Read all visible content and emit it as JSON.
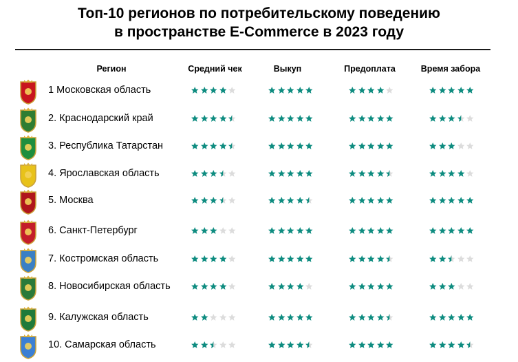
{
  "title_line1": "Топ-10 регионов по потребительскому поведению",
  "title_line2": "в пространстве E-Commerce в 2023 году",
  "headers": {
    "region": "Регион",
    "avg_check": "Средний чек",
    "buyout": "Выкуп",
    "prepayment": "Предоплата",
    "pickup_time": "Время забора"
  },
  "colors": {
    "star_filled": "#0e8c80",
    "star_empty": "#dcdcdc",
    "rule": "#1a1a1a"
  },
  "regions": [
    {
      "name": "1 Московская область",
      "emblem": "moscow-oblast-coat-of-arms-icon",
      "emblem_color": "#c8161e",
      "ratings": [
        4,
        5,
        4,
        5
      ]
    },
    {
      "name": "2. Краснодарский край",
      "emblem": "krasnodar-krai-coat-of-arms-icon",
      "emblem_color": "#2e7d32",
      "ratings": [
        4.5,
        5,
        5,
        3.5
      ]
    },
    {
      "name": "3. Республика Татарстан",
      "emblem": "tatarstan-coat-of-arms-icon",
      "emblem_color": "#1e8e3e",
      "ratings": [
        4.5,
        5,
        5,
        3
      ]
    },
    {
      "name": "4. Ярославская область",
      "emblem": "yaroslavl-oblast-coat-of-arms-icon",
      "emblem_color": "#e8c21a",
      "ratings": [
        3.5,
        5,
        4.5,
        4
      ]
    },
    {
      "name": "5. Москва",
      "emblem": "moscow-coat-of-arms-icon",
      "emblem_color": "#b0161c",
      "ratings": [
        3.5,
        4.5,
        5,
        5
      ]
    },
    {
      "name": "6. Санкт-Петербург",
      "emblem": "saint-petersburg-coat-of-arms-icon",
      "emblem_color": "#c41e2a",
      "ratings": [
        3,
        5,
        5,
        5
      ]
    },
    {
      "name": "7. Костромская область",
      "emblem": "kostroma-oblast-coat-of-arms-icon",
      "emblem_color": "#3a7fc4",
      "ratings": [
        4,
        5,
        4.5,
        2.5
      ]
    },
    {
      "name": "8. Новосибирская область",
      "emblem": "novosibirsk-oblast-coat-of-arms-icon",
      "emblem_color": "#2a7a3a",
      "ratings": [
        4,
        4,
        5,
        3
      ]
    },
    {
      "name": "9. Калужская область",
      "emblem": "kaluga-oblast-coat-of-arms-icon",
      "emblem_color": "#1f7a3a",
      "ratings": [
        2,
        5,
        4.5,
        5
      ]
    },
    {
      "name": "10. Самарская область",
      "emblem": "samara-oblast-coat-of-arms-icon",
      "emblem_color": "#3b7fd4",
      "ratings": [
        2.5,
        4.5,
        5,
        4.5
      ]
    }
  ]
}
